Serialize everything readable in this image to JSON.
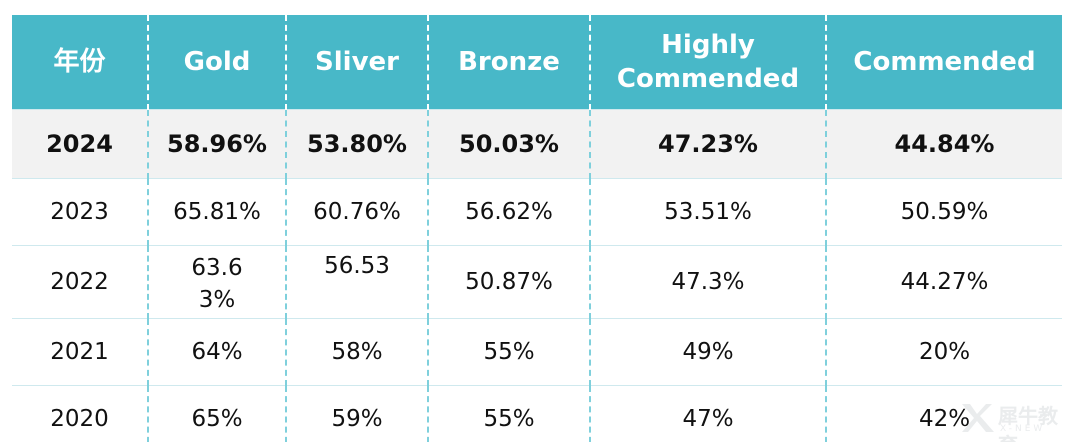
{
  "table": {
    "headers": [
      "年份",
      "Gold",
      "Sliver",
      "Bronze",
      "Highly Commended",
      "Commended"
    ],
    "rows": [
      [
        "2024",
        "58.96%",
        "53.80%",
        "50.03%",
        "47.23%",
        "44.84%"
      ],
      [
        "2023",
        "65.81%",
        "60.76%",
        "56.62%",
        "53.51%",
        "50.59%"
      ],
      [
        "2022",
        "63.63%",
        "56.53",
        "50.87%",
        "47.3%",
        "44.27%"
      ],
      [
        "2021",
        "64%",
        "58%",
        "55%",
        "49%",
        "20%"
      ],
      [
        "2020",
        "65%",
        "59%",
        "55%",
        "47%",
        "42%"
      ]
    ]
  },
  "watermark": {
    "text": "犀牛教育",
    "sub": "X-NEW"
  },
  "colors": {
    "header_bg": "#48b8c8",
    "header_text": "#ffffff",
    "highlight_row_bg": "#f2f2f2"
  }
}
